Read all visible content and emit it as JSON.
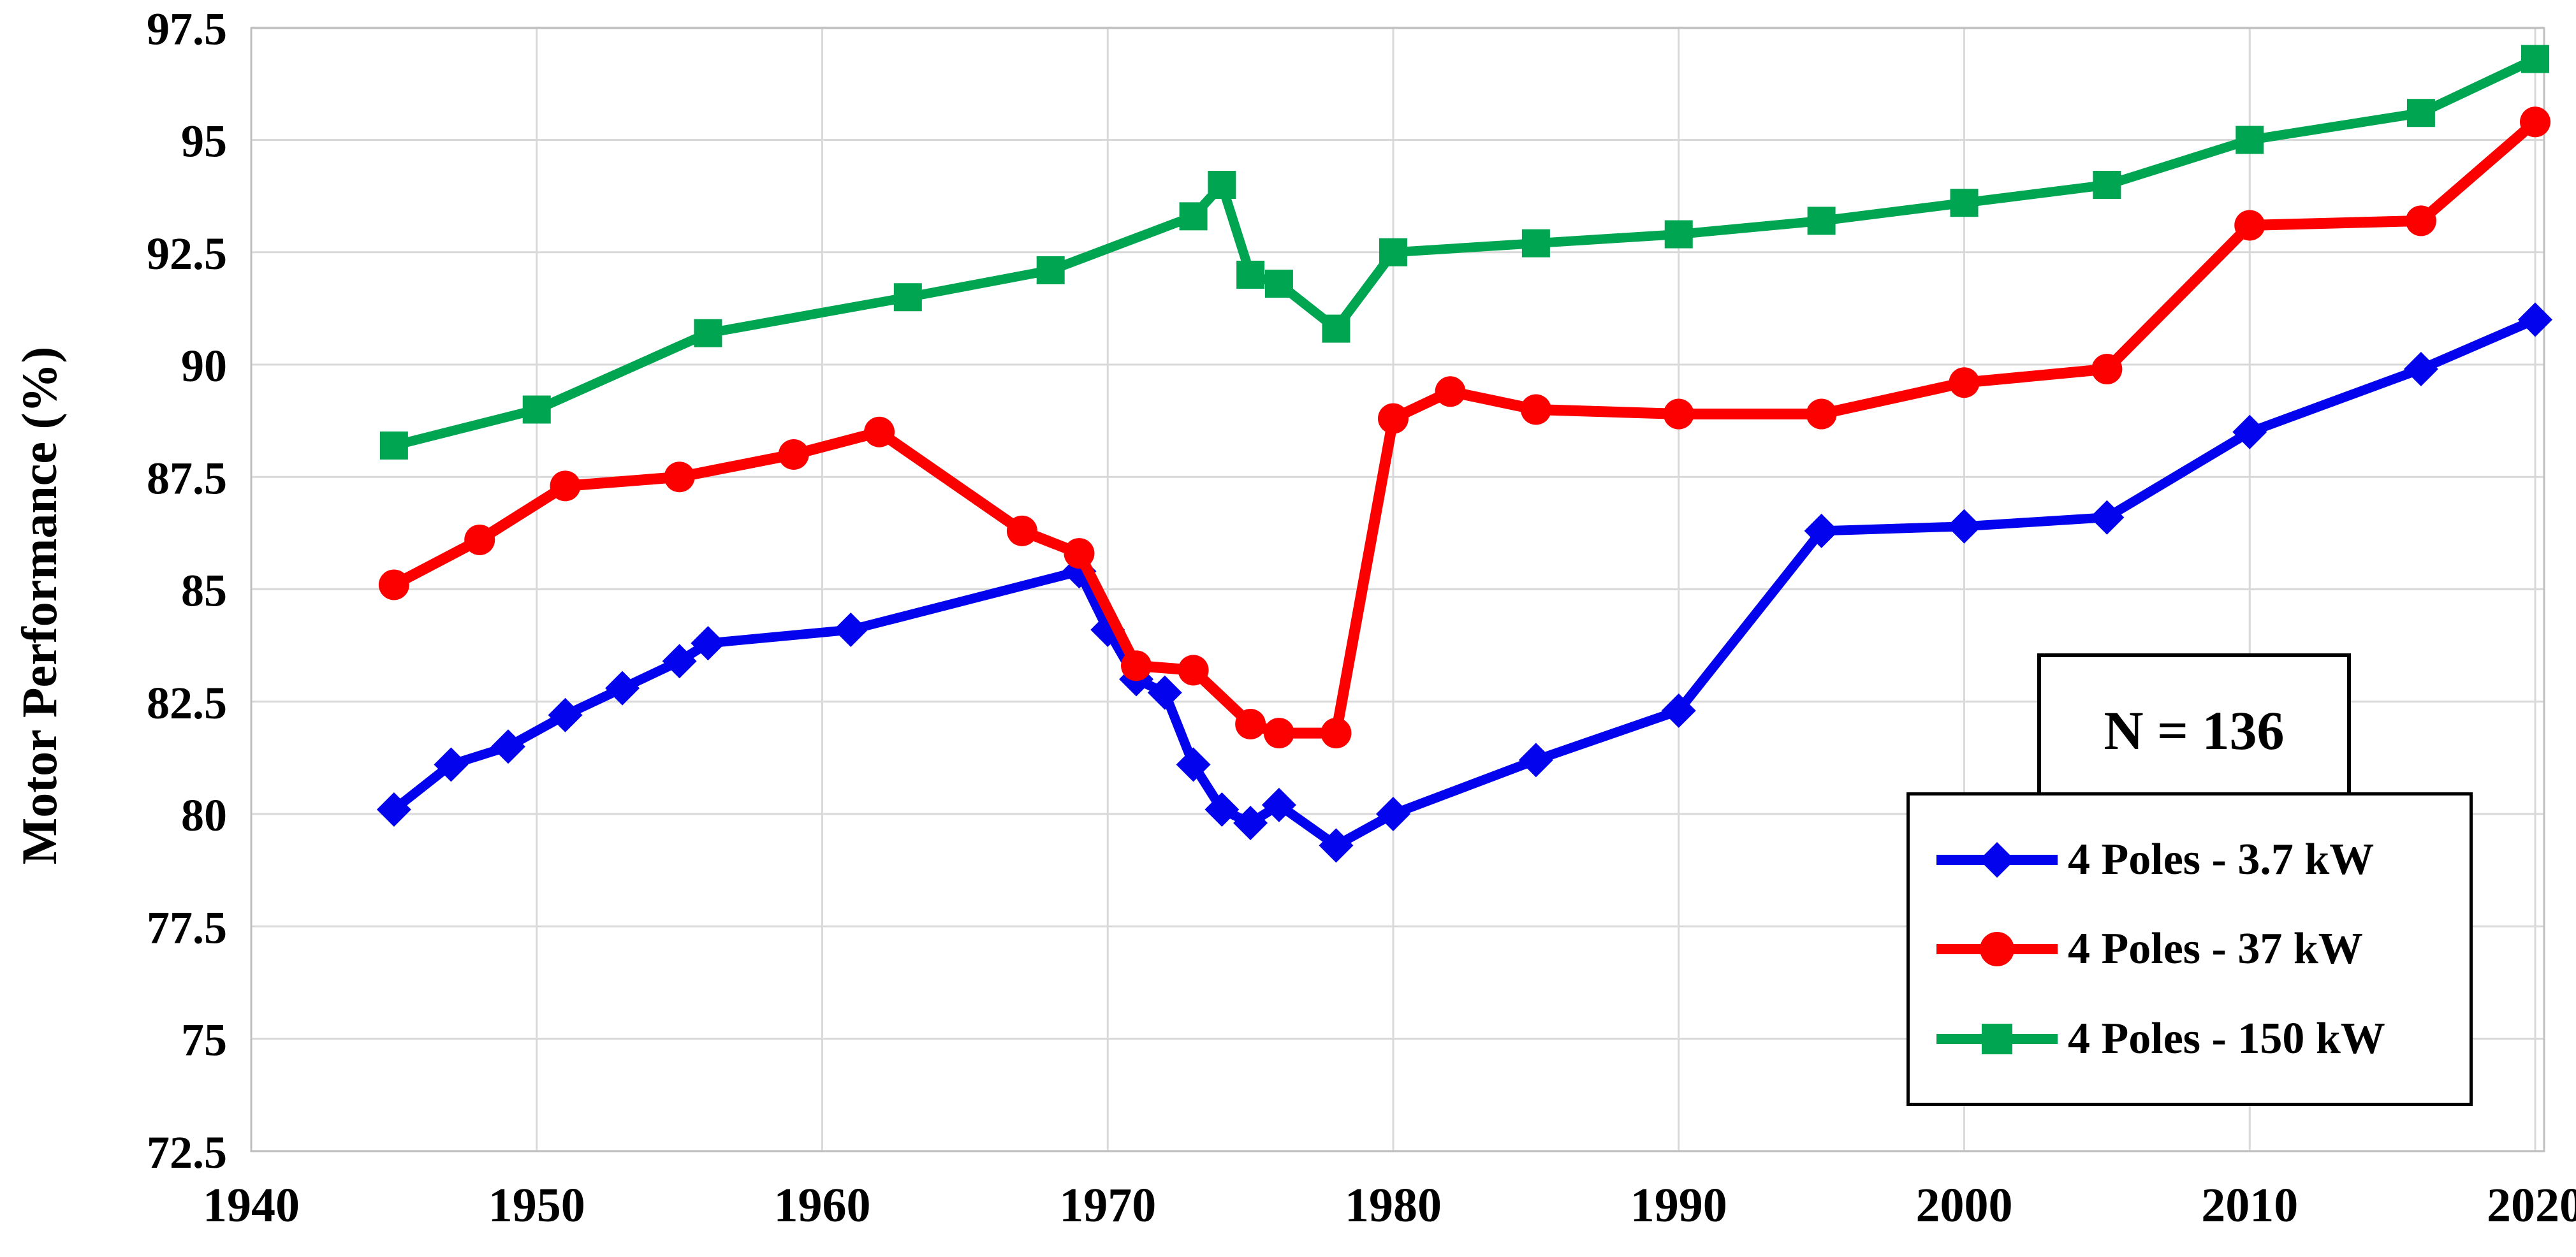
{
  "chart_data": {
    "type": "line",
    "title": "",
    "xlabel": "",
    "ylabel": "Motor Performance (%)",
    "annotation": "N = 136",
    "xlim": [
      1940,
      2020
    ],
    "ylim": [
      72.5,
      97.5
    ],
    "x_ticks": [
      1940,
      1950,
      1960,
      1970,
      1980,
      1990,
      2000,
      2010,
      2020
    ],
    "y_ticks": [
      72.5,
      75,
      77.5,
      80,
      82.5,
      85,
      87.5,
      90,
      92.5,
      95,
      97.5
    ],
    "grid": true,
    "legend_position": "lower right",
    "series": [
      {
        "name": "4 Poles - 3.7 kW",
        "color": "#0303EE",
        "marker": "diamond",
        "points": [
          [
            1945,
            80.1
          ],
          [
            1947,
            81.1
          ],
          [
            1949,
            81.5
          ],
          [
            1951,
            82.2
          ],
          [
            1953,
            82.8
          ],
          [
            1955,
            83.4
          ],
          [
            1956,
            83.8
          ],
          [
            1961,
            84.1
          ],
          [
            1969,
            85.4
          ],
          [
            1970,
            84.1
          ],
          [
            1971,
            83.0
          ],
          [
            1972,
            82.7
          ],
          [
            1973,
            81.1
          ],
          [
            1974,
            80.1
          ],
          [
            1975,
            79.8
          ],
          [
            1976,
            80.2
          ],
          [
            1978,
            79.3
          ],
          [
            1980,
            80.0
          ],
          [
            1985,
            81.2
          ],
          [
            1990,
            82.3
          ],
          [
            1995,
            86.3
          ],
          [
            2000,
            86.4
          ],
          [
            2005,
            86.6
          ],
          [
            2010,
            88.5
          ],
          [
            2016,
            89.9
          ],
          [
            2020,
            91.0
          ]
        ]
      },
      {
        "name": "4 Poles - 37 kW",
        "color": "#FC0000",
        "marker": "circle",
        "points": [
          [
            1945,
            85.1
          ],
          [
            1948,
            86.1
          ],
          [
            1951,
            87.3
          ],
          [
            1955,
            87.5
          ],
          [
            1959,
            88.0
          ],
          [
            1962,
            88.5
          ],
          [
            1967,
            86.3
          ],
          [
            1969,
            85.8
          ],
          [
            1971,
            83.3
          ],
          [
            1973,
            83.2
          ],
          [
            1975,
            82.0
          ],
          [
            1976,
            81.8
          ],
          [
            1978,
            81.8
          ],
          [
            1980,
            88.8
          ],
          [
            1982,
            89.4
          ],
          [
            1985,
            89.0
          ],
          [
            1990,
            88.9
          ],
          [
            1995,
            88.9
          ],
          [
            2000,
            89.6
          ],
          [
            2005,
            89.9
          ],
          [
            2010,
            93.1
          ],
          [
            2016,
            93.2
          ],
          [
            2020,
            95.4
          ]
        ]
      },
      {
        "name": "4 Poles - 150 kW",
        "color": "#00A552",
        "marker": "square",
        "points": [
          [
            1945,
            88.2
          ],
          [
            1950,
            89.0
          ],
          [
            1956,
            90.7
          ],
          [
            1963,
            91.5
          ],
          [
            1968,
            92.1
          ],
          [
            1973,
            93.3
          ],
          [
            1974,
            94.0
          ],
          [
            1975,
            92.0
          ],
          [
            1976,
            91.8
          ],
          [
            1978,
            90.8
          ],
          [
            1980,
            92.5
          ],
          [
            1985,
            92.7
          ],
          [
            1990,
            92.9
          ],
          [
            1995,
            93.2
          ],
          [
            2000,
            93.6
          ],
          [
            2005,
            94.0
          ],
          [
            2010,
            95.0
          ],
          [
            2016,
            95.6
          ],
          [
            2020,
            96.8
          ]
        ]
      }
    ]
  }
}
